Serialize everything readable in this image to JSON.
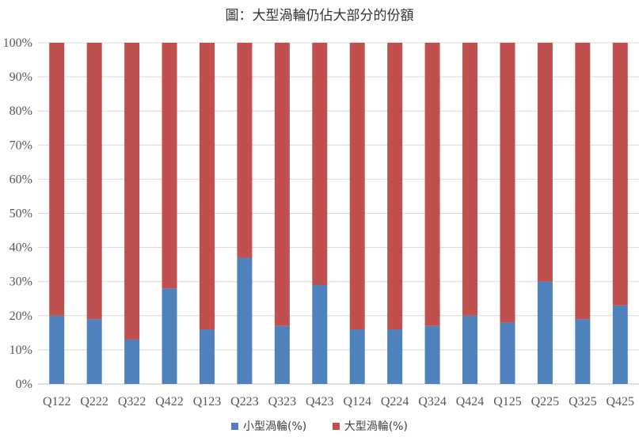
{
  "chart_data": {
    "type": "bar",
    "stacked": true,
    "title": "圖：大型渦輪仍佔大部分的份額",
    "categories": [
      "Q122",
      "Q222",
      "Q322",
      "Q422",
      "Q123",
      "Q223",
      "Q323",
      "Q423",
      "Q124",
      "Q224",
      "Q324",
      "Q424",
      "Q125",
      "Q225",
      "Q325",
      "Q425"
    ],
    "series": [
      {
        "name": "小型渦輪(%)",
        "color": "#4f81bd",
        "values": [
          20,
          19,
          13,
          28,
          16,
          37,
          17,
          29,
          16,
          16,
          17,
          20,
          18,
          30,
          19,
          23
        ]
      },
      {
        "name": "大型渦輪(%)",
        "color": "#c0504d",
        "values": [
          80,
          81,
          87,
          72,
          84,
          63,
          83,
          71,
          84,
          84,
          83,
          80,
          82,
          70,
          81,
          77
        ]
      }
    ],
    "yticks": [
      "0%",
      "10%",
      "20%",
      "30%",
      "40%",
      "50%",
      "60%",
      "70%",
      "80%",
      "90%",
      "100%"
    ],
    "ylim": [
      0,
      100
    ],
    "grid": true,
    "legend_position": "bottom"
  }
}
